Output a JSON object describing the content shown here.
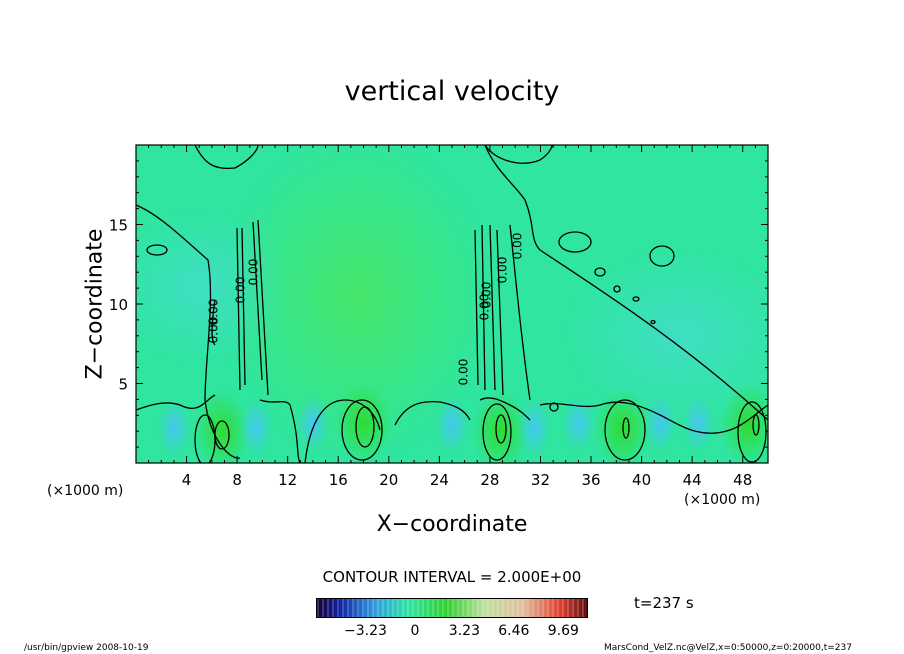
{
  "chart_data": {
    "type": "heatmap",
    "title": "vertical velocity",
    "xlabel": "X−coordinate",
    "ylabel": "Z−coordinate",
    "x_unit_left": "(×1000 m)",
    "x_unit_right": "(×1000 m)",
    "xlim": [
      0,
      50
    ],
    "ylim": [
      0,
      20
    ],
    "x_ticks": [
      4,
      8,
      12,
      16,
      20,
      24,
      28,
      32,
      36,
      40,
      44,
      48
    ],
    "y_ticks": [
      5,
      10,
      15
    ],
    "contour_label": "0.00",
    "contour_label_count": 9,
    "contour_interval_text": "CONTOUR INTERVAL = 2.000E+00",
    "time_text": "t=237 s",
    "colorbar_ticks": [
      {
        "value": -3.23,
        "label": "−3.23"
      },
      {
        "value": 0,
        "label": "0"
      },
      {
        "value": 3.23,
        "label": "3.23"
      },
      {
        "value": 6.46,
        "label": "6.46"
      },
      {
        "value": 9.69,
        "label": "9.69"
      }
    ],
    "colorbar_range": [
      -6.46,
      11.3
    ],
    "updrafts": [
      {
        "x": 6.8,
        "z": 2.0
      },
      {
        "x": 18.0,
        "z": 2.5
      },
      {
        "x": 28.8,
        "z": 2.0
      },
      {
        "x": 38.5,
        "z": 2.2
      },
      {
        "x": 48.5,
        "z": 2.4
      }
    ],
    "downdrafts": [
      {
        "x": 3.0,
        "z": 2.2
      },
      {
        "x": 9.5,
        "z": 2.2
      },
      {
        "x": 14.0,
        "z": 2.5
      },
      {
        "x": 25.0,
        "z": 2.4
      },
      {
        "x": 31.5,
        "z": 2.2
      },
      {
        "x": 35.0,
        "z": 2.5
      },
      {
        "x": 41.5,
        "z": 2.5
      },
      {
        "x": 44.5,
        "z": 2.5
      }
    ],
    "colors": {
      "background_field": "#2fe59f",
      "weak_updraft": "#45e66a",
      "updraft_core": "#2fdc2f",
      "downdraft": "#43c8ee"
    }
  },
  "footer": {
    "left": "/usr/bin/gpview   2008-10-19",
    "right": "MarsCond_VelZ.nc@VelZ,x=0:50000,z=0:20000,t=237"
  }
}
